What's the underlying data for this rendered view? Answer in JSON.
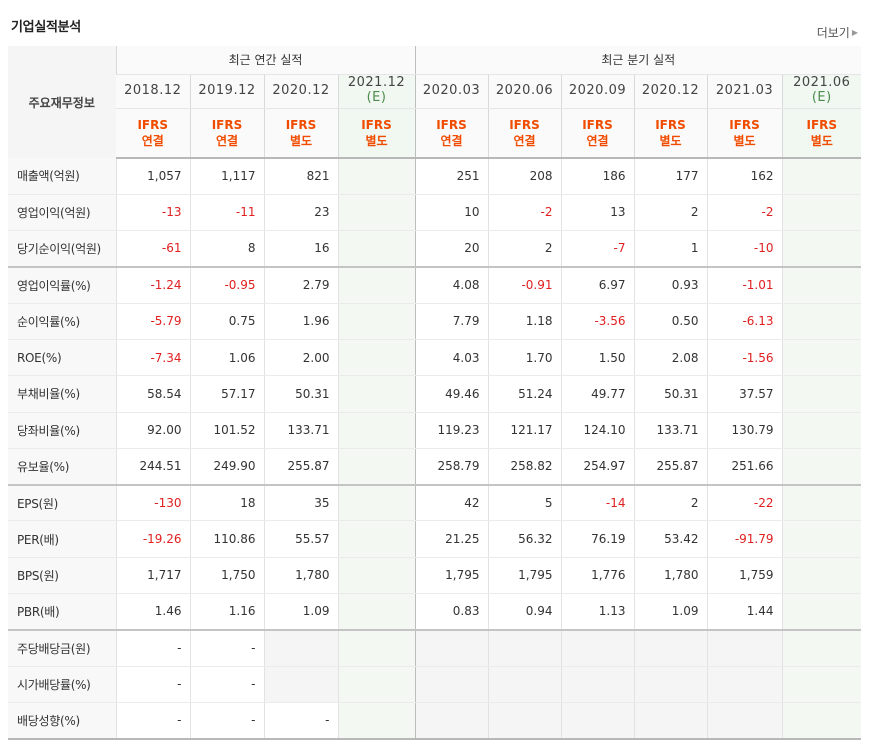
{
  "page": {
    "title": "기업실적분석",
    "more_label": "더보기"
  },
  "header": {
    "row_label": "주요재무정보",
    "annual_title": "최근 연간 실적",
    "quarter_title": "최근 분기 실적",
    "periods": [
      {
        "date": "2018.12",
        "est": "",
        "basis1": "IFRS",
        "basis2": "연결"
      },
      {
        "date": "2019.12",
        "est": "",
        "basis1": "IFRS",
        "basis2": "연결"
      },
      {
        "date": "2020.12",
        "est": "",
        "basis1": "IFRS",
        "basis2": "별도"
      },
      {
        "date": "2021.12",
        "est": "(E)",
        "basis1": "IFRS",
        "basis2": "별도"
      },
      {
        "date": "2020.03",
        "est": "",
        "basis1": "IFRS",
        "basis2": "연결"
      },
      {
        "date": "2020.06",
        "est": "",
        "basis1": "IFRS",
        "basis2": "연결"
      },
      {
        "date": "2020.09",
        "est": "",
        "basis1": "IFRS",
        "basis2": "연결"
      },
      {
        "date": "2020.12",
        "est": "",
        "basis1": "IFRS",
        "basis2": "별도"
      },
      {
        "date": "2021.03",
        "est": "",
        "basis1": "IFRS",
        "basis2": "별도"
      },
      {
        "date": "2021.06",
        "est": "(E)",
        "basis1": "IFRS",
        "basis2": "별도"
      }
    ]
  },
  "rows": [
    {
      "label": "매출액(억원)",
      "values": [
        "1,057",
        "1,117",
        "821",
        "",
        "251",
        "208",
        "186",
        "177",
        "162",
        ""
      ]
    },
    {
      "label": "영업이익(억원)",
      "values": [
        "-13",
        "-11",
        "23",
        "",
        "10",
        "-2",
        "13",
        "2",
        "-2",
        ""
      ]
    },
    {
      "label": "당기순이익(억원)",
      "values": [
        "-61",
        "8",
        "16",
        "",
        "20",
        "2",
        "-7",
        "1",
        "-10",
        ""
      ]
    },
    {
      "label": "영업이익률(%)",
      "values": [
        "-1.24",
        "-0.95",
        "2.79",
        "",
        "4.08",
        "-0.91",
        "6.97",
        "0.93",
        "-1.01",
        ""
      ]
    },
    {
      "label": "순이익률(%)",
      "values": [
        "-5.79",
        "0.75",
        "1.96",
        "",
        "7.79",
        "1.18",
        "-3.56",
        "0.50",
        "-6.13",
        ""
      ]
    },
    {
      "label": "ROE(%)",
      "values": [
        "-7.34",
        "1.06",
        "2.00",
        "",
        "4.03",
        "1.70",
        "1.50",
        "2.08",
        "-1.56",
        ""
      ]
    },
    {
      "label": "부채비율(%)",
      "values": [
        "58.54",
        "57.17",
        "50.31",
        "",
        "49.46",
        "51.24",
        "49.77",
        "50.31",
        "37.57",
        ""
      ]
    },
    {
      "label": "당좌비율(%)",
      "values": [
        "92.00",
        "101.52",
        "133.71",
        "",
        "119.23",
        "121.17",
        "124.10",
        "133.71",
        "130.79",
        ""
      ]
    },
    {
      "label": "유보율(%)",
      "values": [
        "244.51",
        "249.90",
        "255.87",
        "",
        "258.79",
        "258.82",
        "254.97",
        "255.87",
        "251.66",
        ""
      ]
    },
    {
      "label": "EPS(원)",
      "values": [
        "-130",
        "18",
        "35",
        "",
        "42",
        "5",
        "-14",
        "2",
        "-22",
        ""
      ]
    },
    {
      "label": "PER(배)",
      "values": [
        "-19.26",
        "110.86",
        "55.57",
        "",
        "21.25",
        "56.32",
        "76.19",
        "53.42",
        "-91.79",
        ""
      ]
    },
    {
      "label": "BPS(원)",
      "values": [
        "1,717",
        "1,750",
        "1,780",
        "",
        "1,795",
        "1,795",
        "1,776",
        "1,780",
        "1,759",
        ""
      ]
    },
    {
      "label": "PBR(배)",
      "values": [
        "1.46",
        "1.16",
        "1.09",
        "",
        "0.83",
        "0.94",
        "1.13",
        "1.09",
        "1.44",
        ""
      ]
    },
    {
      "label": "주당배당금(원)",
      "values": [
        "-",
        "-",
        "",
        "",
        "",
        "",
        "",
        "",
        "",
        ""
      ]
    },
    {
      "label": "시가배당률(%)",
      "values": [
        "-",
        "-",
        "",
        "",
        "",
        "",
        "",
        "",
        "",
        ""
      ]
    },
    {
      "label": "배당성향(%)",
      "values": [
        "-",
        "-",
        "-",
        "",
        "",
        "",
        "",
        "",
        "",
        ""
      ]
    }
  ],
  "colors": {
    "negative": "#e02020",
    "ifrs": "#f04c00",
    "estimate": "#4c8c4c"
  }
}
